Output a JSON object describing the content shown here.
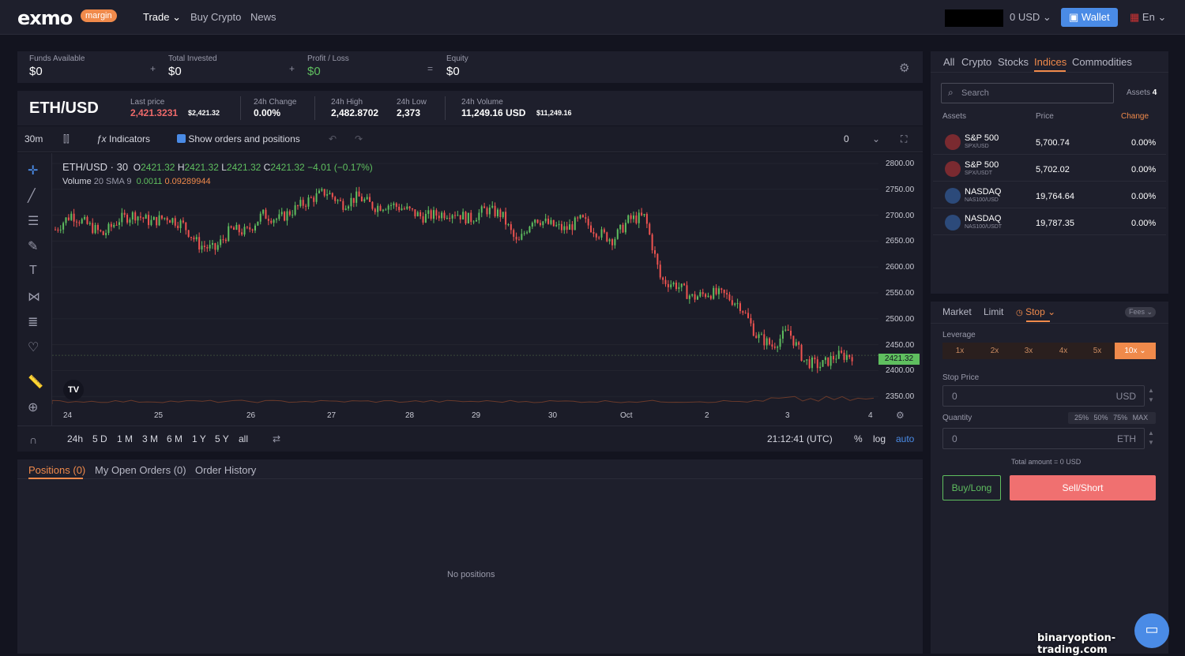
{
  "header": {
    "logo": "exmo",
    "logo_badge": "margin",
    "nav": [
      "Trade",
      "Buy Crypto",
      "News"
    ],
    "balance": "0 USD",
    "wallet": "Wallet",
    "lang": "En"
  },
  "funds": {
    "funds_available_label": "Funds Available",
    "funds_available": "$0",
    "total_invested_label": "Total Invested",
    "total_invested": "$0",
    "profit_loss_label": "Profit / Loss",
    "profit_loss": "$0",
    "equity_label": "Equity",
    "equity": "$0",
    "plus": "+",
    "equals": "="
  },
  "ticker": {
    "pair": "ETH/USD",
    "last_price_label": "Last price",
    "last_price": "2,421.3231",
    "last_price_usd": "$2,421.32",
    "change_label": "24h Change",
    "change": "0.00%",
    "high_label": "24h High",
    "high": "2,482.8702",
    "low_label": "24h Low",
    "low": "2,373",
    "volume_label": "24h Volume",
    "volume": "11,249.16 USD",
    "volume_usd": "$11,249.16"
  },
  "chart_toolbar": {
    "interval": "30m",
    "indicators": "Indicators",
    "show_orders": "Show orders and positions",
    "counter": "0"
  },
  "chart_legend": {
    "symbol": "ETH/USD · 30",
    "ohlc_o_label": "O",
    "ohlc_o": "2421.32",
    "ohlc_h_label": "H",
    "ohlc_h": "2421.32",
    "ohlc_l_label": "L",
    "ohlc_l": "2421.32",
    "ohlc_c_label": "C",
    "ohlc_c": "2421.32",
    "ohlc_chg": "−4.01 (−0.17%)",
    "volume_label": "Volume",
    "volume_sma": "20 SMA 9",
    "volume_v1": "0.0011",
    "volume_v2": "0.09289944"
  },
  "chart_data": {
    "type": "candlestick",
    "y_ticks": [
      "2800.00",
      "2750.00",
      "2700.00",
      "2650.00",
      "2600.00",
      "2550.00",
      "2500.00",
      "2450.00",
      "2400.00",
      "2350.00"
    ],
    "ylim": [
      2330,
      2815
    ],
    "x_ticks": [
      "24",
      "25",
      "26",
      "27",
      "28",
      "29",
      "30",
      "Oct",
      "2",
      "3",
      "4"
    ],
    "last_price_tag": "2421.32",
    "close_path": [
      2670,
      2700,
      2680,
      2660,
      2690,
      2700,
      2685,
      2695,
      2680,
      2640,
      2630,
      2670,
      2665,
      2700,
      2690,
      2710,
      2730,
      2745,
      2720,
      2735,
      2715,
      2720,
      2710,
      2695,
      2700,
      2705,
      2690,
      2710,
      2700,
      2640,
      2695,
      2680,
      2670,
      2690,
      2665,
      2650,
      2690,
      2695,
      2570,
      2560,
      2535,
      2545,
      2540,
      2520,
      2460,
      2440,
      2470,
      2410,
      2400,
      2420,
      2421
    ]
  },
  "chart_bottom": {
    "ranges": [
      "24h",
      "5 D",
      "1 M",
      "3 M",
      "6 M",
      "1 Y",
      "5 Y",
      "all"
    ],
    "time": "21:12:41 (UTC)",
    "pct": "%",
    "log": "log",
    "auto": "auto"
  },
  "bottom_panel": {
    "tabs": [
      "Positions (0)",
      "My Open Orders (0)",
      "Order History"
    ],
    "empty": "No positions"
  },
  "markets": {
    "tabs": [
      "All",
      "Crypto",
      "Stocks",
      "Indices",
      "Commodities"
    ],
    "search_placeholder": "Search",
    "assets_count_label": "Assets",
    "assets_count": "4",
    "col_assets": "Assets",
    "col_price": "Price",
    "col_change": "Change",
    "rows": [
      {
        "name": "S&P 500",
        "sub": "SPX/USD",
        "price": "5,700.74",
        "change": "0.00%"
      },
      {
        "name": "S&P 500",
        "sub": "SPX/USDT",
        "price": "5,702.02",
        "change": "0.00%"
      },
      {
        "name": "NASDAQ",
        "sub": "NAS100/USD",
        "price": "19,764.64",
        "change": "0.00%"
      },
      {
        "name": "NASDAQ",
        "sub": "NAS100/USDT",
        "price": "19,787.35",
        "change": "0.00%"
      }
    ]
  },
  "order_form": {
    "tabs": [
      "Market",
      "Limit",
      "Stop"
    ],
    "fees": "Fees",
    "leverage_label": "Leverage",
    "leverage": [
      "1x",
      "2x",
      "3x",
      "4x",
      "5x",
      "10x"
    ],
    "stop_price_label": "Stop Price",
    "stop_price": "0",
    "stop_price_unit": "USD",
    "quantity_label": "Quantity",
    "quantity": "0",
    "quantity_unit": "ETH",
    "pcts": [
      "25%",
      "50%",
      "75%",
      "MAX"
    ],
    "total": "Total amount = 0 USD",
    "buy": "Buy/Long",
    "sell": "Sell/Short"
  },
  "watermark": "binaryoption-trading.com"
}
